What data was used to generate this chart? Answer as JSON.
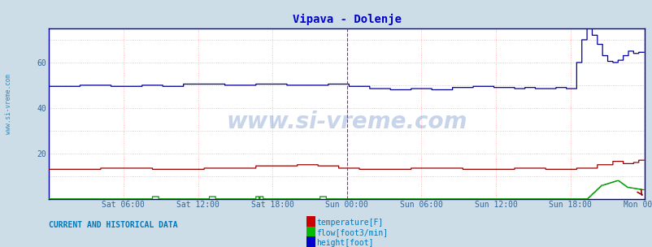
{
  "title": "Vipava - Dolenje",
  "title_color": "#0000cc",
  "bg_color": "#ccdde8",
  "plot_bg_color": "#ffffff",
  "watermark": "www.si-vreme.com",
  "xlabel_ticks": [
    "Sat 06:00",
    "Sat 12:00",
    "Sat 18:00",
    "Sun 00:00",
    "Sun 06:00",
    "Sun 12:00",
    "Sun 18:00",
    "Mon 00:00"
  ],
  "ylabel_ticks": [
    20,
    40,
    60
  ],
  "ylim": [
    0,
    75
  ],
  "n_points": 576,
  "legend_labels": [
    "temperature[F]",
    "flow[foot3/min]",
    "height[foot]"
  ],
  "legend_colors": [
    "#cc0000",
    "#00bb00",
    "#0000cc"
  ],
  "current_label": "CURRENT AND HISTORICAL DATA",
  "sidebar_text": "www.si-vreme.com",
  "sidebar_color": "#0077bb",
  "red_color": "#990000",
  "green_color": "#009900",
  "blue_color": "#000099",
  "magenta_color": "#cc00cc",
  "grid_h_color": "#ffaaaa",
  "grid_v_color": "#ffaaaa",
  "axis_color": "#0000aa",
  "tick_label_color": "#336699",
  "watermark_color": "#2255aa",
  "watermark_alpha": 0.25
}
